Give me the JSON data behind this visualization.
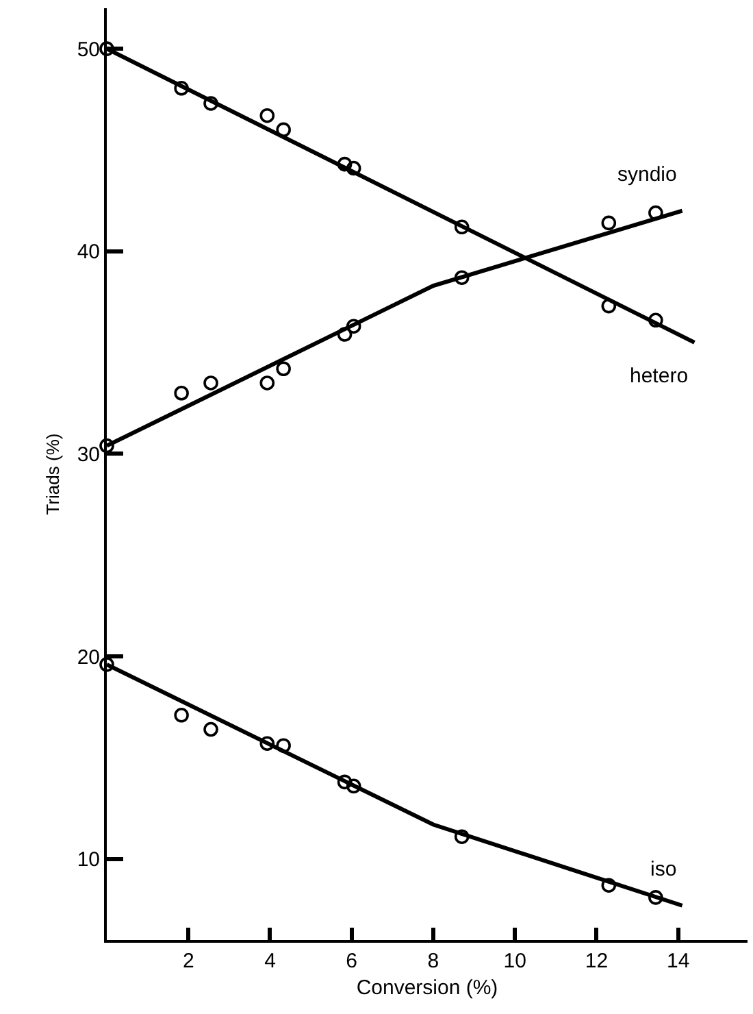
{
  "chart_data": {
    "type": "scatter",
    "xlabel": "Conversion (%)",
    "ylabel": "Triads (%)",
    "xlim": [
      0,
      15.7
    ],
    "ylim": [
      6,
      52
    ],
    "xticks": [
      2,
      4,
      6,
      8,
      10,
      12,
      14
    ],
    "yticks": [
      10,
      20,
      30,
      40,
      50
    ],
    "grid": false,
    "legend": false,
    "marker": "circle",
    "x": [
      0,
      1.83,
      2.55,
      3.93,
      4.33,
      5.83,
      6.05,
      8.7,
      12.3,
      13.45
    ],
    "series": [
      {
        "color": "#000000",
        "values": [
          50,
          48.05,
          47.3,
          46.7,
          46,
          44.3,
          44.1,
          41.2,
          37.3,
          36.6
        ]
      },
      {
        "color": "#000000",
        "values": [
          30.4,
          33,
          33.5,
          33.5,
          34.2,
          35.9,
          36.3,
          38.7,
          41.4,
          41.9
        ]
      },
      {
        "color": "#000000",
        "values": [
          19.6,
          17.1,
          16.4,
          15.7,
          15.6,
          13.8,
          13.6,
          11.1,
          8.7,
          8.1
        ]
      },
      {
        "type": "line",
        "name": "hetero",
        "color": "#000000",
        "marker": "none",
        "line_style": "solid",
        "x": [
          0,
          14.4
        ],
        "values": [
          50,
          35.5
        ]
      },
      {
        "type": "line",
        "name": "syndio",
        "color": "#000000",
        "marker": "none",
        "line_style": "solid",
        "x": [
          0,
          8,
          14.1
        ],
        "values": [
          30.4,
          38.3,
          42
        ]
      },
      {
        "type": "line",
        "name": "iso",
        "color": "#000000",
        "marker": "none",
        "line_style": "solid",
        "x": [
          0,
          8,
          14.1
        ],
        "values": [
          19.6,
          11.7,
          7.7
        ]
      }
    ]
  }
}
